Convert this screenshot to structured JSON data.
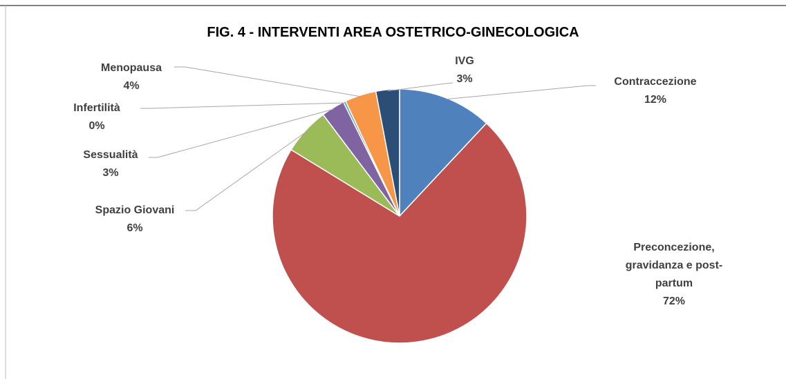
{
  "chart_data": {
    "type": "pie",
    "title": "FIG. 4 - INTERVENTI AREA OSTETRICO-GINECOLOGICA",
    "categories": [
      "Contraccezione",
      "Preconcezione, gravidanza e post-partum",
      "Spazio Giovani",
      "Sessualità",
      "Infertilità",
      "Menopausa",
      "IVG"
    ],
    "values": [
      12,
      72,
      6,
      3,
      0.3,
      4,
      3
    ],
    "value_labels": [
      "12%",
      "72%",
      "6%",
      "3%",
      "0%",
      "4%",
      "3%"
    ],
    "colors": [
      "#4f81bd",
      "#c0504d",
      "#9bbb59",
      "#8064a2",
      "#4bacc6",
      "#f79646",
      "#2c4d75"
    ]
  }
}
